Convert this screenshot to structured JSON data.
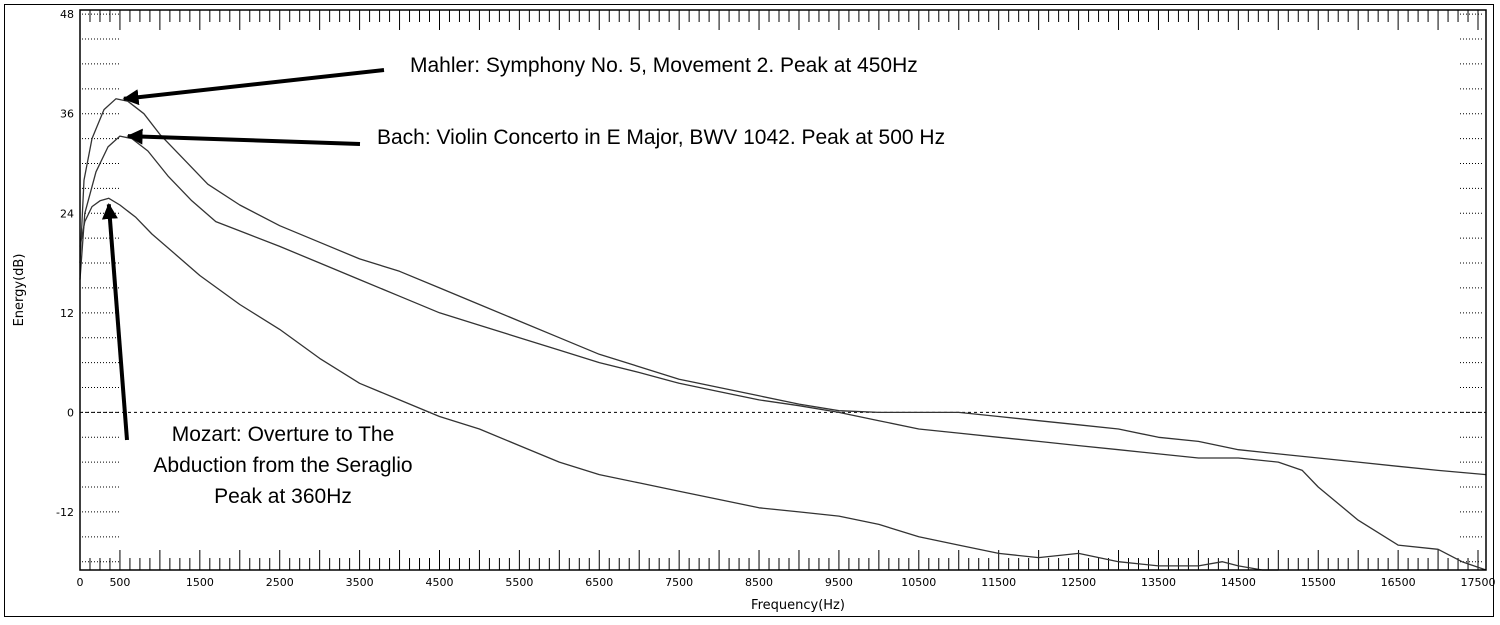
{
  "chart_data": {
    "type": "line",
    "xlabel": "Frequency(Hz)",
    "ylabel": "Energy(dB)",
    "xlim": [
      0,
      17600
    ],
    "ylim": [
      -19,
      48.5
    ],
    "x_ticks": [
      "0",
      "500",
      "1500",
      "2500",
      "3500",
      "4500",
      "5500",
      "6500",
      "7500",
      "8500",
      "9500",
      "10500",
      "11500",
      "12500",
      "13500",
      "14500",
      "15500",
      "16500",
      "17500"
    ],
    "y_ticks": [
      "48",
      "36",
      "24",
      "12",
      "0",
      "-12"
    ],
    "grid": "dotted",
    "zero_line": 0,
    "colors": {
      "line": "#333333",
      "axis": "#000000",
      "background": "#ffffff"
    },
    "series": [
      {
        "x": [
          0,
          50,
          150,
          300,
          450,
          600,
          800,
          1000,
          1300,
          1600,
          2000,
          2500,
          3000,
          3500,
          4000,
          4500,
          5000,
          5500,
          6000,
          6500,
          7000,
          7500,
          8000,
          8500,
          9000,
          9500,
          10000,
          10500,
          11000,
          11500,
          12000,
          12500,
          13000,
          13500,
          14000,
          14500,
          15000,
          15500,
          16000,
          16500,
          17000,
          17600
        ],
        "y": [
          18,
          28,
          33,
          36.5,
          37.8,
          37.5,
          36,
          33.5,
          30.5,
          27.5,
          25,
          22.5,
          20.5,
          18.5,
          17,
          15,
          13,
          11,
          9,
          7,
          5.5,
          4,
          3,
          2,
          1,
          0.2,
          0,
          0,
          0,
          -0.5,
          -1,
          -1.5,
          -2,
          -3,
          -3.5,
          -4.5,
          -5,
          -5.5,
          -6,
          -6.5,
          -7,
          -7.5
        ]
      },
      {
        "x": [
          0,
          60,
          200,
          350,
          500,
          650,
          850,
          1100,
          1400,
          1700,
          2100,
          2500,
          3000,
          3500,
          4000,
          4500,
          5000,
          5500,
          6000,
          6500,
          7000,
          7500,
          8000,
          8500,
          9000,
          9500,
          10000,
          10500,
          11000,
          11500,
          12000,
          12500,
          13000,
          13500,
          14000,
          14500,
          15000,
          15300,
          15500,
          16000,
          16500,
          17000,
          17300,
          17600
        ],
        "y": [
          16,
          24,
          29,
          32,
          33.3,
          33,
          31.5,
          28.5,
          25.5,
          23,
          21.5,
          20,
          18,
          16,
          14,
          12,
          10.5,
          9,
          7.5,
          6,
          4.8,
          3.5,
          2.5,
          1.5,
          0.8,
          0,
          -1,
          -2,
          -2.5,
          -3,
          -3.5,
          -4,
          -4.5,
          -5,
          -5.5,
          -5.5,
          -6,
          -7,
          -9,
          -13,
          -16,
          -16.5,
          -18,
          -19
        ]
      },
      {
        "x": [
          0,
          60,
          150,
          250,
          360,
          500,
          700,
          900,
          1200,
          1500,
          2000,
          2500,
          3000,
          3500,
          4000,
          4500,
          5000,
          5500,
          6000,
          6500,
          7000,
          7500,
          8000,
          8500,
          9000,
          9500,
          10000,
          10500,
          11000,
          11500,
          12000,
          12500,
          13000,
          13500,
          14000,
          14300,
          14500,
          14800,
          15000
        ],
        "y": [
          20,
          23,
          24.8,
          25.5,
          25.8,
          25,
          23.5,
          21.5,
          19,
          16.5,
          13,
          10,
          6.5,
          3.5,
          1.5,
          -0.5,
          -2,
          -4,
          -6,
          -7.5,
          -8.5,
          -9.5,
          -10.5,
          -11.5,
          -12,
          -12.5,
          -13.5,
          -15,
          -16,
          -17,
          -17.5,
          -17,
          -18,
          -18.5,
          -18.5,
          -18,
          -18.5,
          -19,
          -19
        ]
      }
    ],
    "annotations": [
      {
        "text": "Mahler: Symphony No. 5, Movement 2. Peak at 450Hz",
        "point": [
          450,
          37.8
        ]
      },
      {
        "text": "Bach: Violin Concerto in E Major, BWV 1042. Peak at 500 Hz",
        "point": [
          500,
          33.3
        ]
      },
      {
        "lines": [
          "Mozart: Overture to The",
          "Abduction from the Seraglio",
          "Peak at 360Hz"
        ],
        "point": [
          360,
          25.8
        ]
      }
    ]
  }
}
